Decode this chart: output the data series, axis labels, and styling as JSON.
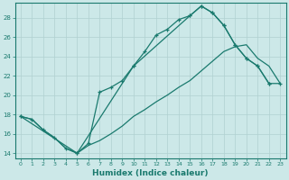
{
  "xlabel": "Humidex (Indice chaleur)",
  "background_color": "#cce8e8",
  "grid_color": "#b0d0d0",
  "line_color": "#1a7a6e",
  "spine_color": "#1a7a6e",
  "xlim": [
    -0.5,
    23.5
  ],
  "ylim": [
    13.5,
    29.5
  ],
  "xticks": [
    0,
    1,
    2,
    3,
    4,
    5,
    6,
    7,
    8,
    9,
    10,
    11,
    12,
    13,
    14,
    15,
    16,
    17,
    18,
    19,
    20,
    21,
    22,
    23
  ],
  "yticks": [
    14,
    16,
    18,
    20,
    22,
    24,
    26,
    28
  ],
  "curve1_x": [
    0,
    1,
    2,
    3,
    4,
    5,
    6,
    7,
    8,
    9,
    10,
    11,
    12,
    13,
    14,
    15,
    16,
    17,
    18,
    19,
    20,
    21,
    22
  ],
  "curve1_y": [
    17.8,
    17.5,
    16.4,
    15.6,
    14.5,
    14.0,
    15.0,
    20.3,
    20.8,
    21.5,
    23.0,
    24.5,
    26.2,
    26.8,
    27.8,
    28.2,
    29.2,
    28.5,
    27.2,
    25.2,
    23.8,
    23.0,
    21.2
  ],
  "curve2_x": [
    0,
    1,
    2,
    3,
    4,
    5,
    6,
    7,
    8,
    9,
    10,
    11,
    12,
    13,
    14,
    15,
    16,
    17,
    18,
    19,
    20,
    21,
    22,
    23
  ],
  "curve2_y": [
    17.8,
    17.5,
    16.4,
    15.6,
    14.5,
    14.0,
    14.8,
    15.3,
    16.0,
    16.8,
    17.8,
    18.5,
    19.3,
    20.0,
    20.8,
    21.5,
    22.5,
    23.5,
    24.5,
    25.0,
    25.2,
    23.8,
    23.0,
    21.2
  ],
  "curve3_x": [
    0,
    5,
    10,
    15,
    16,
    17,
    18,
    19,
    20,
    21,
    22,
    23
  ],
  "curve3_y": [
    17.8,
    14.0,
    23.0,
    28.2,
    29.2,
    28.5,
    27.2,
    25.2,
    23.8,
    23.0,
    21.2,
    21.2
  ]
}
